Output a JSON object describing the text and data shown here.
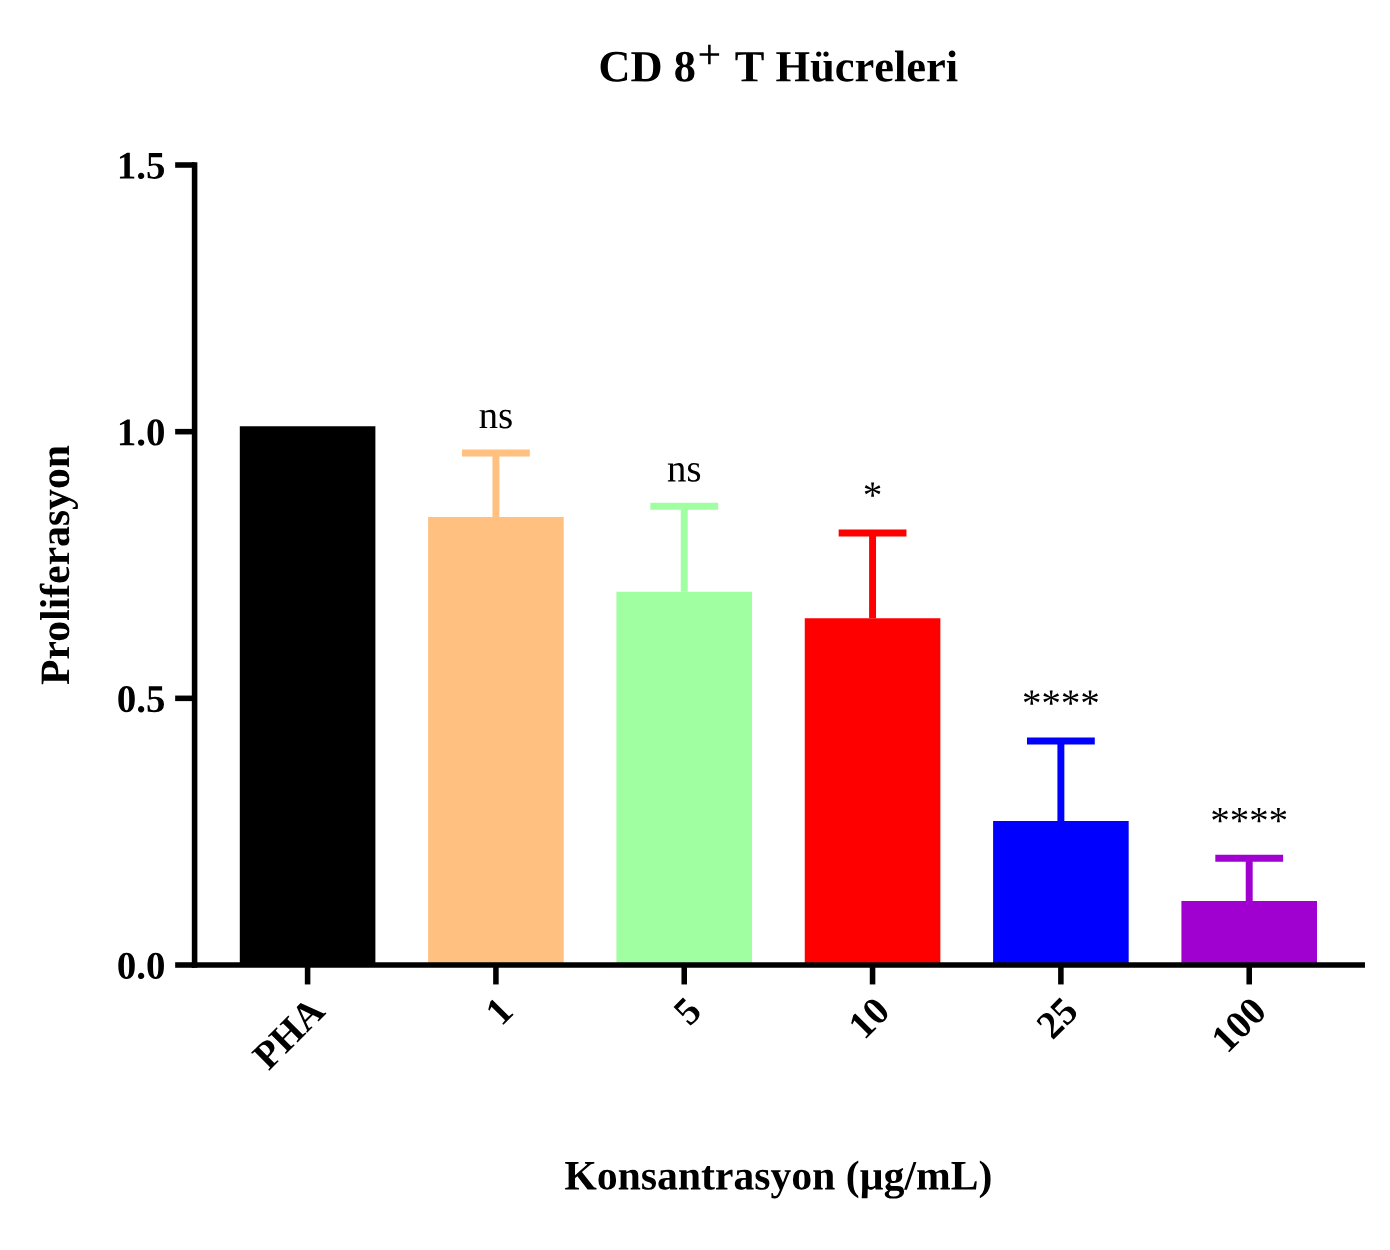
{
  "chart_data": {
    "type": "bar",
    "title": "CD 8$^{+}$ T Hücreleri",
    "xlabel": "Konsantrasyon (µg/mL)",
    "ylabel": "Proliferasyon",
    "categories": [
      "PHA",
      "1",
      "5",
      "10",
      "25",
      "100"
    ],
    "values": [
      1.01,
      0.84,
      0.7,
      0.65,
      0.27,
      0.12
    ],
    "colors": [
      "#000000",
      "#ffc080",
      "#a0ffa0",
      "#ff0000",
      "#0000ff",
      "#a000d0"
    ],
    "errors": [
      null,
      [
        0.84,
        0.96
      ],
      [
        0.7,
        0.86
      ],
      [
        0.65,
        0.81
      ],
      [
        0.27,
        0.42
      ],
      [
        0.12,
        0.2
      ]
    ],
    "ylim": [
      0,
      1.5
    ],
    "yticks": [
      {
        "value": 0,
        "label": "0.0"
      },
      {
        "value": 0.5,
        "label": "0.5"
      },
      {
        "value": 1.0,
        "label": "1.0"
      },
      {
        "value": 1.5,
        "label": "1.5"
      }
    ],
    "grid": false,
    "legend": false,
    "annotations": [
      {
        "text": "ns",
        "x": "1",
        "y": 0.96
      },
      {
        "text": "ns",
        "x": "5",
        "y": 0.86
      },
      {
        "text": "*",
        "x": "10",
        "y": 0.81
      },
      {
        "text": "****",
        "x": "25",
        "y": 0.42
      },
      {
        "text": "****",
        "x": "100",
        "y": 0.2
      }
    ]
  }
}
